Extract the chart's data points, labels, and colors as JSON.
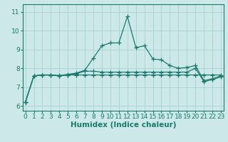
{
  "x": [
    0,
    1,
    2,
    3,
    4,
    5,
    6,
    7,
    8,
    9,
    10,
    11,
    12,
    13,
    14,
    15,
    16,
    17,
    18,
    19,
    20,
    21,
    22,
    23
  ],
  "line1": [
    6.2,
    7.6,
    7.65,
    7.65,
    7.6,
    7.65,
    7.65,
    7.65,
    7.65,
    7.65,
    7.65,
    7.65,
    7.65,
    7.65,
    7.65,
    7.65,
    7.65,
    7.65,
    7.65,
    7.65,
    7.65,
    7.65,
    7.65,
    7.65
  ],
  "line2": [
    6.2,
    7.6,
    7.65,
    7.65,
    7.6,
    7.65,
    7.72,
    7.85,
    7.85,
    7.8,
    7.8,
    7.8,
    7.8,
    7.8,
    7.8,
    7.8,
    7.8,
    7.8,
    7.8,
    7.8,
    8.0,
    7.3,
    7.4,
    7.55
  ],
  "line3": [
    6.2,
    7.6,
    7.65,
    7.65,
    7.62,
    7.68,
    7.75,
    7.9,
    8.55,
    9.2,
    9.35,
    9.35,
    10.75,
    9.1,
    9.2,
    8.5,
    8.45,
    8.15,
    8.0,
    8.05,
    8.15,
    7.35,
    7.45,
    7.6
  ],
  "line_color": "#1a7a6e",
  "bg_color": "#cce8e8",
  "grid_color": "#aad4d4",
  "xlabel": "Humidex (Indice chaleur)",
  "yticks": [
    6,
    7,
    8,
    9,
    10,
    11
  ],
  "xlim": [
    -0.3,
    23.3
  ],
  "ylim": [
    5.75,
    11.4
  ],
  "axis_fontsize": 6.5,
  "label_fontsize": 7.5
}
